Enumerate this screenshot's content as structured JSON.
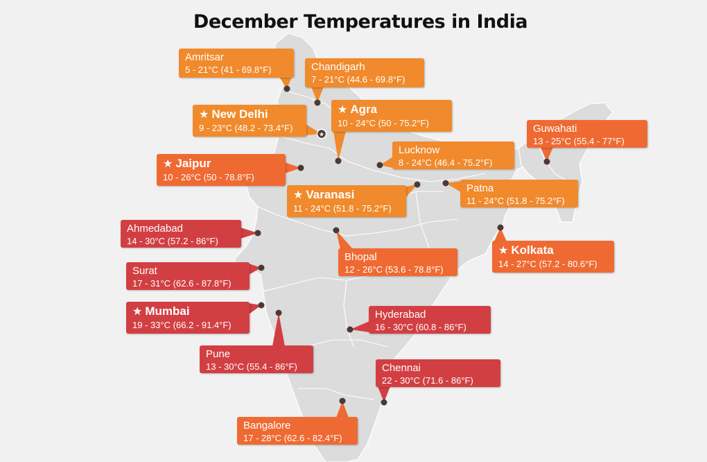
{
  "title": "December Temperatures in India",
  "colors": {
    "cool": "#f08a2c",
    "mild": "#ef6a32",
    "warm": "#d23f43",
    "land": "#dcdcdc",
    "border": "#ffffff",
    "dot": "#4b3a34"
  },
  "cities": [
    {
      "id": "amritsar",
      "name": "Amritsar",
      "temp": "5 - 21°C (41 - 69.8°F)",
      "featured": false,
      "tier": "cool"
    },
    {
      "id": "chandigarh",
      "name": "Chandigarh",
      "temp": "7 - 21°C (44.6 - 69.8°F)",
      "featured": false,
      "tier": "cool"
    },
    {
      "id": "new-delhi",
      "name": "New Delhi",
      "temp": "9 - 23°C (48.2 - 73.4°F)",
      "featured": true,
      "tier": "cool"
    },
    {
      "id": "agra",
      "name": "Agra",
      "temp": "10 - 24°C (50 - 75.2°F)",
      "featured": true,
      "tier": "cool"
    },
    {
      "id": "guwahati",
      "name": "Guwahati",
      "temp": "13 - 25°C (55.4 - 77°F)",
      "featured": false,
      "tier": "mild"
    },
    {
      "id": "lucknow",
      "name": "Lucknow",
      "temp": "8 - 24°C (46.4 - 75.2°F)",
      "featured": false,
      "tier": "cool"
    },
    {
      "id": "jaipur",
      "name": "Jaipur",
      "temp": "10 - 26°C (50 - 78.8°F)",
      "featured": true,
      "tier": "mild"
    },
    {
      "id": "varanasi",
      "name": "Varanasi",
      "temp": "11 - 24°C (51.8 - 75.2°F)",
      "featured": true,
      "tier": "cool"
    },
    {
      "id": "patna",
      "name": "Patna",
      "temp": "11 - 24°C (51.8 - 75.2°F)",
      "featured": false,
      "tier": "cool"
    },
    {
      "id": "ahmedabad",
      "name": "Ahmedabad",
      "temp": "14 - 30°C (57.2 - 86°F)",
      "featured": false,
      "tier": "warm"
    },
    {
      "id": "bhopal",
      "name": "Bhopal",
      "temp": "12 - 26°C (53.6 - 78.8°F)",
      "featured": false,
      "tier": "mild"
    },
    {
      "id": "kolkata",
      "name": "Kolkata",
      "temp": "14 - 27°C (57.2 - 80.6°F)",
      "featured": true,
      "tier": "mild"
    },
    {
      "id": "surat",
      "name": "Surat",
      "temp": "17 - 31°C (62.6 - 87.8°F)",
      "featured": false,
      "tier": "warm"
    },
    {
      "id": "mumbai",
      "name": "Mumbai",
      "temp": "19 - 33°C (66.2 - 91.4°F)",
      "featured": true,
      "tier": "warm"
    },
    {
      "id": "hyderabad",
      "name": "Hyderabad",
      "temp": "16 - 30°C (60.8 - 86°F)",
      "featured": false,
      "tier": "warm"
    },
    {
      "id": "pune",
      "name": "Pune",
      "temp": "13 - 30°C (55.4 - 86°F)",
      "featured": false,
      "tier": "warm"
    },
    {
      "id": "chennai",
      "name": "Chennai",
      "temp": "22 - 30°C (71.6 - 86°F)",
      "featured": false,
      "tier": "warm"
    },
    {
      "id": "bangalore",
      "name": "Bangalore",
      "temp": "17 - 28°C (62.6 - 82.4°F)",
      "featured": false,
      "tier": "mild"
    }
  ]
}
